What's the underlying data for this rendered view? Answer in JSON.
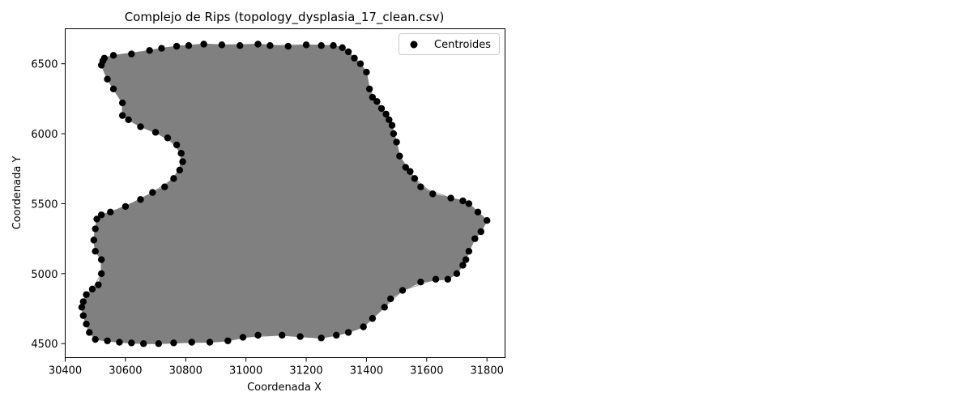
{
  "chart_data": {
    "type": "scatter",
    "title": "Complejo de Rips (topology_dysplasia_17_clean.csv)",
    "xlabel": "Coordenada X",
    "ylabel": "Coordenada Y",
    "xlim": [
      30400,
      31860
    ],
    "ylim": [
      4400,
      6750
    ],
    "xticks": [
      30400,
      30600,
      30800,
      31000,
      31200,
      31400,
      31600,
      31800
    ],
    "yticks": [
      4500,
      5000,
      5500,
      6000,
      6500
    ],
    "grid": false,
    "legend": {
      "placement": "top-right",
      "entries": [
        "Centroides"
      ]
    },
    "colors": {
      "points": "#000000",
      "edges": "#808080",
      "fill": "#808080"
    },
    "series": [
      {
        "name": "Centroides",
        "points": [
          [
            30530,
            6540
          ],
          [
            30560,
            6560
          ],
          [
            30620,
            6570
          ],
          [
            30680,
            6595
          ],
          [
            30720,
            6610
          ],
          [
            30770,
            6625
          ],
          [
            30810,
            6630
          ],
          [
            30860,
            6640
          ],
          [
            30920,
            6635
          ],
          [
            30980,
            6630
          ],
          [
            31040,
            6640
          ],
          [
            31080,
            6630
          ],
          [
            31140,
            6625
          ],
          [
            31200,
            6635
          ],
          [
            31250,
            6630
          ],
          [
            31290,
            6630
          ],
          [
            31320,
            6615
          ],
          [
            31340,
            6585
          ],
          [
            31360,
            6540
          ],
          [
            31380,
            6500
          ],
          [
            31400,
            6440
          ],
          [
            31410,
            6320
          ],
          [
            31420,
            6260
          ],
          [
            31435,
            6230
          ],
          [
            31450,
            6180
          ],
          [
            31465,
            6140
          ],
          [
            31475,
            6100
          ],
          [
            31485,
            6060
          ],
          [
            31490,
            6000
          ],
          [
            31500,
            5940
          ],
          [
            31510,
            5840
          ],
          [
            31530,
            5760
          ],
          [
            31545,
            5730
          ],
          [
            31560,
            5680
          ],
          [
            31580,
            5620
          ],
          [
            31620,
            5570
          ],
          [
            31680,
            5540
          ],
          [
            31720,
            5520
          ],
          [
            31740,
            5500
          ],
          [
            31770,
            5440
          ],
          [
            31800,
            5380
          ],
          [
            31780,
            5300
          ],
          [
            31760,
            5250
          ],
          [
            31740,
            5160
          ],
          [
            31730,
            5100
          ],
          [
            31720,
            5060
          ],
          [
            31700,
            5000
          ],
          [
            31670,
            4960
          ],
          [
            31630,
            4960
          ],
          [
            31580,
            4940
          ],
          [
            31520,
            4880
          ],
          [
            31480,
            4820
          ],
          [
            31460,
            4760
          ],
          [
            31420,
            4680
          ],
          [
            31390,
            4620
          ],
          [
            31340,
            4580
          ],
          [
            31300,
            4560
          ],
          [
            31250,
            4540
          ],
          [
            31180,
            4550
          ],
          [
            31120,
            4560
          ],
          [
            31040,
            4560
          ],
          [
            30990,
            4545
          ],
          [
            30940,
            4520
          ],
          [
            30880,
            4510
          ],
          [
            30820,
            4510
          ],
          [
            30760,
            4505
          ],
          [
            30710,
            4500
          ],
          [
            30660,
            4500
          ],
          [
            30620,
            4505
          ],
          [
            30580,
            4510
          ],
          [
            30540,
            4520
          ],
          [
            30500,
            4530
          ],
          [
            30480,
            4580
          ],
          [
            30470,
            4640
          ],
          [
            30460,
            4700
          ],
          [
            30455,
            4760
          ],
          [
            30460,
            4800
          ],
          [
            30470,
            4850
          ],
          [
            30490,
            4890
          ],
          [
            30510,
            4920
          ],
          [
            30520,
            5000
          ],
          [
            30520,
            5100
          ],
          [
            30500,
            5160
          ],
          [
            30495,
            5240
          ],
          [
            30500,
            5320
          ],
          [
            30505,
            5390
          ],
          [
            30520,
            5420
          ],
          [
            30550,
            5440
          ],
          [
            30600,
            5480
          ],
          [
            30650,
            5530
          ],
          [
            30690,
            5580
          ],
          [
            30730,
            5620
          ],
          [
            30760,
            5680
          ],
          [
            30780,
            5740
          ],
          [
            30790,
            5800
          ],
          [
            30785,
            5860
          ],
          [
            30770,
            5920
          ],
          [
            30740,
            5970
          ],
          [
            30700,
            6010
          ],
          [
            30650,
            6050
          ],
          [
            30610,
            6100
          ],
          [
            30590,
            6130
          ],
          [
            30590,
            6220
          ],
          [
            30560,
            6320
          ],
          [
            30540,
            6390
          ],
          [
            30520,
            6490
          ],
          [
            30525,
            6520
          ]
        ]
      }
    ]
  }
}
